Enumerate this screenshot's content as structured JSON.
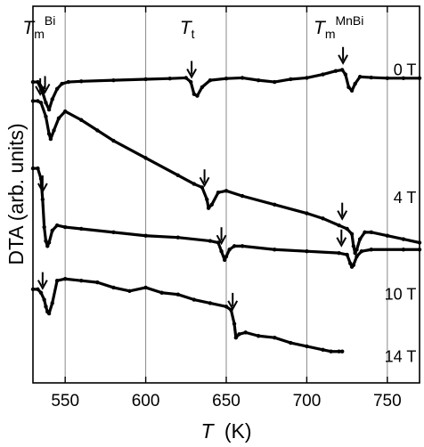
{
  "chart_data": {
    "type": "line",
    "title": "",
    "xlabel_symbol": "T",
    "xlabel_unit": "(K)",
    "ylabel": "DTA (arb. units)",
    "xlim": [
      530,
      770
    ],
    "ylim": [
      0,
      100
    ],
    "x_ticks": [
      550,
      600,
      650,
      700,
      750
    ],
    "y_ticks_shown": false,
    "grid": "vertical lines at x ticks",
    "line_color": "#000000",
    "annotations": [
      {
        "id": "tm-bi",
        "symbol": "T",
        "subscript": "m",
        "superscript": "Bi",
        "x": 536
      },
      {
        "id": "tt",
        "symbol": "T",
        "subscript": "t",
        "x": 628
      },
      {
        "id": "tm-mnbi",
        "symbol": "T",
        "subscript": "m",
        "superscript": "MnBi",
        "x": 722
      }
    ],
    "series": [
      {
        "name": "0 T",
        "label_x": 768,
        "label_y": 86,
        "x": [
          530,
          533,
          536,
          538,
          540,
          542,
          545,
          548,
          552,
          560,
          580,
          600,
          615,
          625,
          628,
          630,
          632,
          635,
          640,
          650,
          660,
          670,
          680,
          690,
          700,
          710,
          718,
          722,
          724,
          726,
          728,
          730,
          733,
          740,
          750,
          760,
          770
        ],
        "y": [
          84,
          84,
          81,
          78,
          76,
          79,
          82,
          83.5,
          84,
          84.2,
          84.5,
          84.8,
          85,
          85.2,
          84,
          80.5,
          80,
          82.5,
          84.5,
          85,
          85.2,
          84.5,
          84,
          84.8,
          85.2,
          86.2,
          87.2,
          87.5,
          86.2,
          82.5,
          81.5,
          83.5,
          85.5,
          85.3,
          85.1,
          85.1,
          85.1
        ]
      },
      {
        "name": "4 T",
        "label_x": 768,
        "label_y": 49,
        "x": [
          530,
          533,
          535,
          538,
          540,
          541,
          543,
          546,
          550,
          560,
          570,
          580,
          600,
          620,
          630,
          635,
          638,
          639,
          641,
          645,
          650,
          660,
          680,
          700,
          710,
          720,
          725,
          728,
          729,
          730,
          731,
          733,
          736,
          740,
          750,
          760,
          770
        ],
        "y": [
          78.5,
          78.5,
          78,
          74,
          69,
          67.5,
          70,
          73.5,
          75.5,
          73,
          70,
          67,
          62,
          57,
          54.5,
          53.5,
          50,
          47.5,
          48.5,
          52,
          52.5,
          51,
          48.5,
          46,
          44.5,
          42.5,
          41.5,
          40,
          36.5,
          34.5,
          35.5,
          38.5,
          40.5,
          40.5,
          39.5,
          38.5,
          37.5
        ]
      },
      {
        "name": "10 T",
        "label_x": 768,
        "label_y": 21,
        "x": [
          530,
          533,
          535,
          536,
          537,
          538,
          539,
          540,
          542,
          545,
          550,
          560,
          580,
          600,
          620,
          640,
          645,
          647,
          649,
          650,
          652,
          655,
          660,
          680,
          700,
          720,
          725,
          727,
          728,
          729,
          731,
          734,
          740,
          760,
          770
        ],
        "y": [
          59,
          59,
          56,
          50,
          42,
          38,
          36.5,
          37.5,
          41,
          42.5,
          42,
          41.5,
          40.5,
          39.5,
          39,
          38,
          37.5,
          35,
          32.5,
          33.5,
          35.5,
          36.5,
          36.5,
          35.5,
          35,
          34.5,
          34,
          31.5,
          30.5,
          31,
          33.5,
          35,
          35.5,
          35.5,
          35.5
        ]
      },
      {
        "name": "14 T",
        "label_x": 768,
        "label_y": 3,
        "x": [
          530,
          533,
          535,
          537,
          538,
          539,
          540,
          542,
          545,
          550,
          560,
          570,
          580,
          590,
          600,
          610,
          620,
          630,
          640,
          650,
          653,
          655,
          656,
          658,
          662,
          670,
          680,
          690,
          700,
          710,
          715,
          720,
          722
        ],
        "y": [
          24,
          24,
          23,
          21,
          19,
          17.5,
          17,
          20,
          26.5,
          27,
          26.5,
          26,
          24.5,
          23.5,
          24.5,
          23,
          22.5,
          21,
          20,
          19,
          18,
          14,
          10,
          11,
          11.5,
          10.5,
          10,
          8.5,
          7.5,
          6.5,
          6,
          6,
          6
        ]
      }
    ]
  }
}
